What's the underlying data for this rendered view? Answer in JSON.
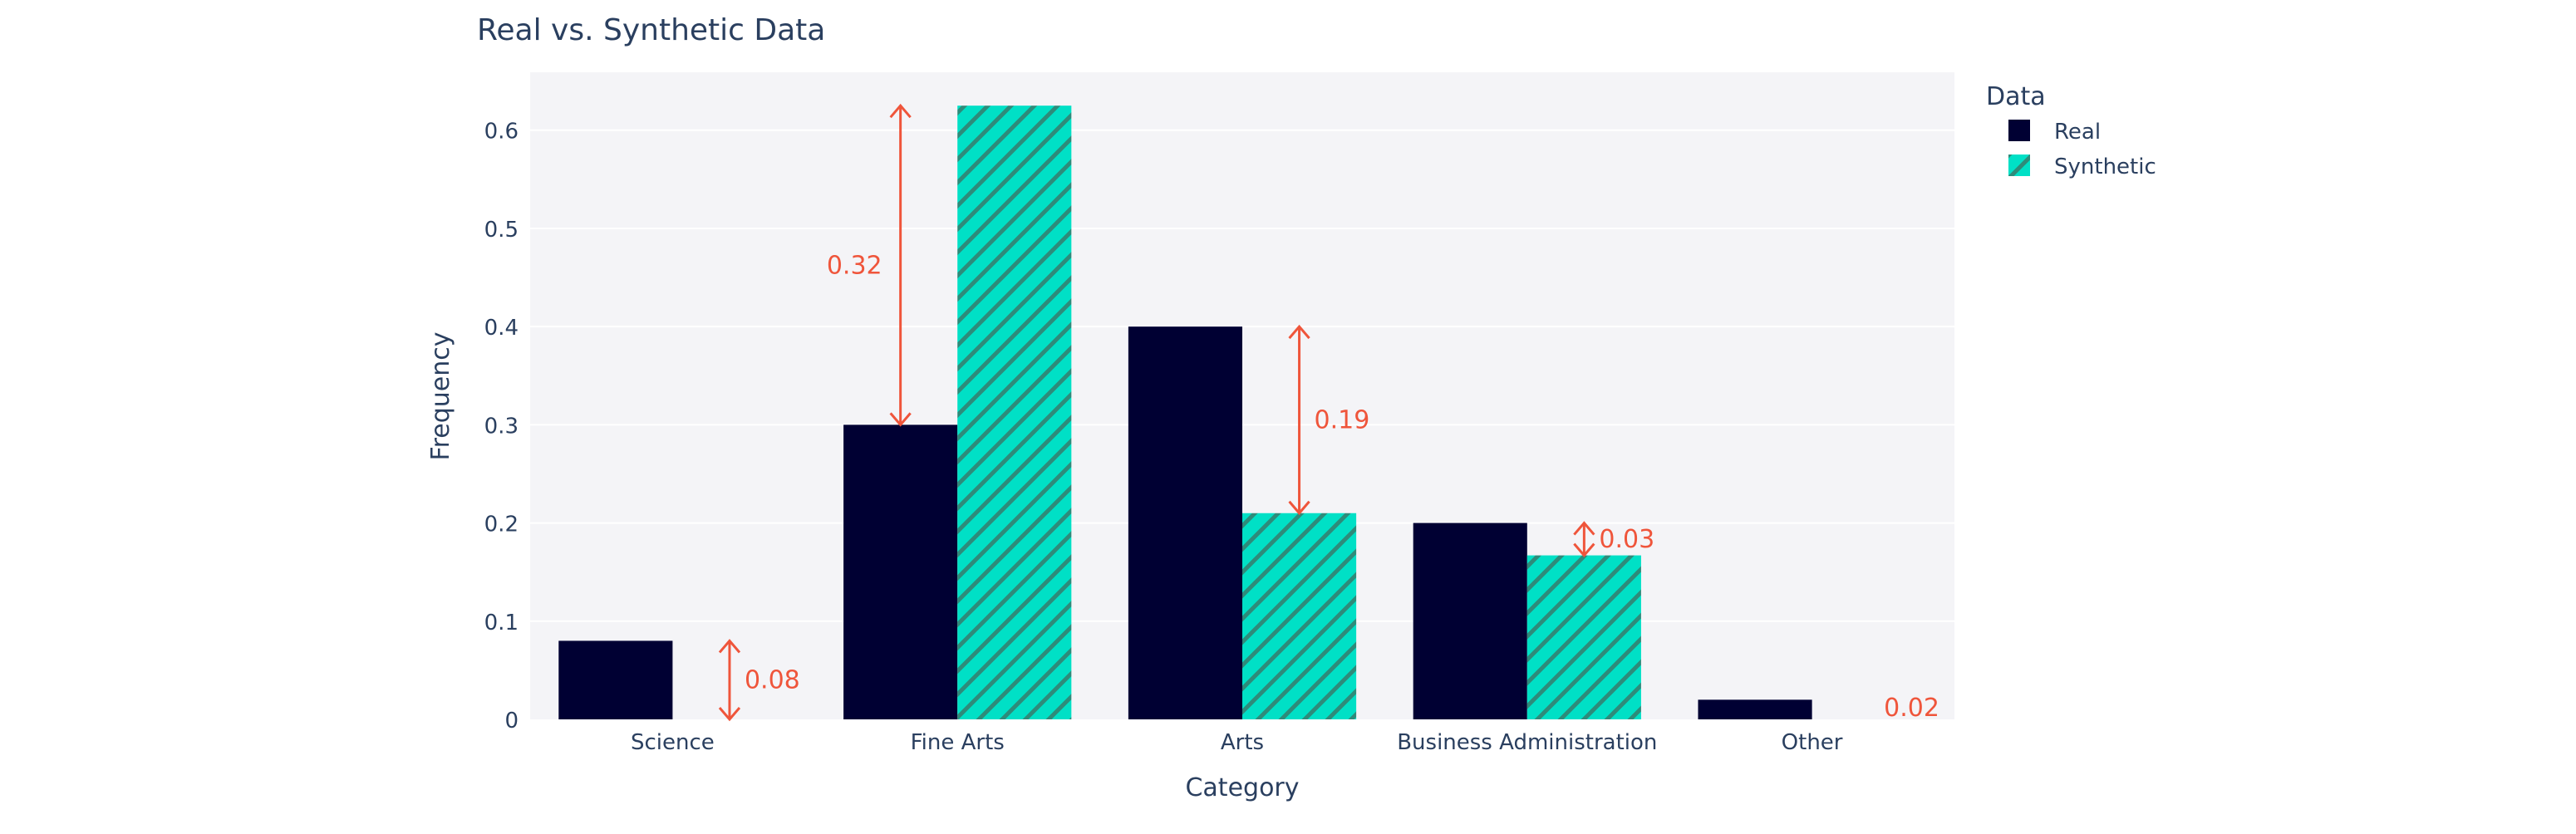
{
  "chart_data": {
    "type": "bar",
    "title": "Real vs. Synthetic Data",
    "xlabel": "Category",
    "ylabel": "Frequency",
    "categories": [
      "Science",
      "Fine Arts",
      "Arts",
      "Business Administration",
      "Other"
    ],
    "series": [
      {
        "name": "Real",
        "values": [
          0.08,
          0.3,
          0.4,
          0.2,
          0.02
        ],
        "color": "#000033",
        "pattern": "none"
      },
      {
        "name": "Synthetic",
        "values": [
          0,
          0.625,
          0.21,
          0.167,
          0
        ],
        "color": "#00E0C6",
        "pattern": "diagonal-stripes"
      }
    ],
    "ylim": [
      0,
      0.65
    ],
    "yticks": [
      0,
      0.1,
      0.2,
      0.3,
      0.4,
      0.5,
      0.6
    ],
    "ytick_labels": [
      "0",
      "0.1",
      "0.2",
      "0.3",
      "0.4",
      "0.5",
      "0.6"
    ],
    "grid": true,
    "legend": {
      "title": "Data",
      "placement": "top-right-outside"
    },
    "annotations": [
      {
        "category": "Science",
        "text": "0.08",
        "from": 0,
        "to": 0.08,
        "arrow": true,
        "at": "Synthetic",
        "label_side": "right"
      },
      {
        "category": "Fine Arts",
        "text": "0.32",
        "from": 0.3,
        "to": 0.625,
        "arrow": true,
        "at": "Real",
        "label_side": "left"
      },
      {
        "category": "Arts",
        "text": "0.19",
        "from": 0.21,
        "to": 0.4,
        "arrow": true,
        "at": "Synthetic",
        "label_side": "right"
      },
      {
        "category": "Business Administration",
        "text": "0.03",
        "from": 0.167,
        "to": 0.2,
        "arrow": true,
        "at": "Synthetic",
        "label_side": "right"
      },
      {
        "category": "Other",
        "text": "0.02",
        "from": 0,
        "to": 0.02,
        "arrow": false,
        "at": "Synthetic",
        "label_side": "right"
      }
    ],
    "colors": {
      "annotation": "#EF553B",
      "plot_bg": "#F4F4F7",
      "grid": "#FFFFFF",
      "text": "#2A3F5F",
      "stripe": "#2E8B7A"
    }
  }
}
